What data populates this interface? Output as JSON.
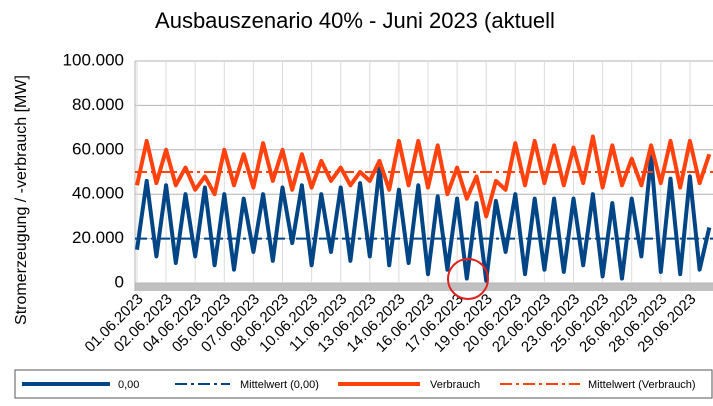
{
  "chart_data": {
    "type": "line",
    "title": "Ausbauszenario 40% - Juni 2023 (aktuell",
    "y_label": "Stromerzeugung / -verbrauch [MW]",
    "categories": [
      "01.06.2023",
      null,
      null,
      "02.06.2023",
      null,
      null,
      "04.06.2023",
      null,
      null,
      "05.06.2023",
      null,
      null,
      "07.06.2023",
      null,
      null,
      "08.06.2023",
      null,
      null,
      "10.06.2023",
      null,
      null,
      "11.06.2023",
      null,
      null,
      "13.06.2023",
      null,
      null,
      "14.06.2023",
      null,
      null,
      "16.06.2023",
      null,
      null,
      "17.06.2023",
      null,
      null,
      "19.06.2023",
      null,
      null,
      "20.06.2023",
      null,
      null,
      "22.06.2023",
      null,
      null,
      "23.06.2023",
      null,
      null,
      "25.06.2023",
      null,
      null,
      "26.06.2023",
      null,
      null,
      "28.06.2023",
      null,
      null,
      "29.06.2023",
      null,
      null
    ],
    "series": [
      {
        "name": "0,00",
        "color": "#004586",
        "dash": false,
        "values": [
          15000,
          46000,
          12000,
          44000,
          9000,
          40000,
          12000,
          43000,
          8000,
          40000,
          6000,
          38000,
          14000,
          40000,
          10000,
          43000,
          18000,
          44000,
          8000,
          40000,
          14000,
          43000,
          10000,
          45000,
          12000,
          52000,
          8000,
          42000,
          9000,
          44000,
          4000,
          39000,
          6000,
          38000,
          2000,
          36000,
          1000,
          37000,
          14000,
          40000,
          4000,
          38000,
          6000,
          38000,
          5000,
          38000,
          8000,
          40000,
          3000,
          36000,
          2000,
          38000,
          12000,
          57000,
          5000,
          47000,
          4000,
          48000,
          6000,
          25000
        ]
      },
      {
        "name": "Mittelwert (0,00)",
        "color": "#004586",
        "dash": true,
        "value": 20000
      },
      {
        "name": "Verbrauch",
        "color": "#ff420e",
        "dash": false,
        "values": [
          44000,
          64000,
          45000,
          60000,
          44000,
          52000,
          42000,
          48000,
          40000,
          60000,
          44000,
          58000,
          43000,
          63000,
          46000,
          60000,
          42000,
          58000,
          43000,
          55000,
          46000,
          52000,
          44000,
          50000,
          46000,
          55000,
          42000,
          64000,
          44000,
          64000,
          43000,
          62000,
          40000,
          52000,
          38000,
          48000,
          30000,
          46000,
          42000,
          63000,
          44000,
          64000,
          45000,
          62000,
          44000,
          61000,
          45000,
          66000,
          43000,
          62000,
          44000,
          56000,
          44000,
          62000,
          45000,
          64000,
          43000,
          64000,
          45000,
          58000
        ]
      },
      {
        "name": "Mittelwert (Verbrauch)",
        "color": "#ff420e",
        "dash": true,
        "value": 50000
      }
    ],
    "ylim": [
      0,
      100000
    ],
    "yticks": [
      0,
      {
        "value": 20000,
        "label": "20.000"
      },
      {
        "value": 40000,
        "label": "40.000"
      },
      {
        "value": 60000,
        "label": "60.000"
      },
      {
        "value": 80000,
        "label": "80.000"
      },
      {
        "value": 100000,
        "label": "100.000"
      }
    ],
    "grid": true
  }
}
